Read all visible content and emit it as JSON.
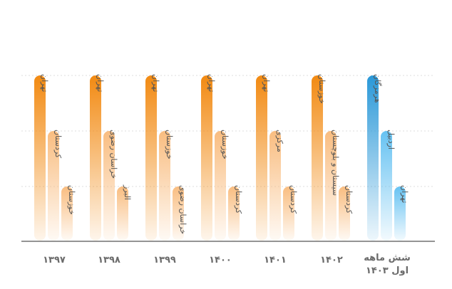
{
  "chart_data": {
    "type": "bar",
    "grid": true,
    "levels": [
      3,
      2,
      1
    ],
    "colors": {
      "orange": "#F28A12",
      "orange_light": "#F9BD80",
      "blue": "#2A98D8",
      "blue_light": "#66C2F2",
      "grid": "#dddddd",
      "axis": "#555555",
      "label": "#555555",
      "category": "#6b6b6b"
    },
    "groups": [
      {
        "category_lines": [
          "۱۳۹۷"
        ],
        "color": "orange",
        "bars": [
          {
            "label": "تهران",
            "rank": 1
          },
          {
            "label": "کردستان",
            "rank": 2
          },
          {
            "label": "خوزستان",
            "rank": 3
          }
        ]
      },
      {
        "category_lines": [
          "۱۳۹۸"
        ],
        "color": "orange",
        "bars": [
          {
            "label": "تهران",
            "rank": 1
          },
          {
            "label": "خراسان رضوی",
            "rank": 2
          },
          {
            "label": "البرز",
            "rank": 3
          }
        ]
      },
      {
        "category_lines": [
          "۱۳۹۹"
        ],
        "color": "orange",
        "bars": [
          {
            "label": "تهران",
            "rank": 1
          },
          {
            "label": "خوزستان",
            "rank": 2
          },
          {
            "label": "خراسان رضوی",
            "rank": 3
          }
        ]
      },
      {
        "category_lines": [
          "۱۴۰۰"
        ],
        "color": "orange",
        "bars": [
          {
            "label": "تهران",
            "rank": 1
          },
          {
            "label": "خوزستان",
            "rank": 2
          },
          {
            "label": "کردستان",
            "rank": 3
          }
        ]
      },
      {
        "category_lines": [
          "۱۴۰۱"
        ],
        "color": "orange",
        "bars": [
          {
            "label": "تهران",
            "rank": 1
          },
          {
            "label": "مرکزی",
            "rank": 2
          },
          {
            "label": "کردستان",
            "rank": 3
          }
        ]
      },
      {
        "category_lines": [
          "۱۴۰۲"
        ],
        "color": "orange",
        "bars": [
          {
            "label": "خوزستان",
            "rank": 1
          },
          {
            "label": "سیستان و بلوچستان",
            "rank": 2
          },
          {
            "label": "کردستان",
            "rank": 3
          }
        ]
      },
      {
        "category_lines": [
          "شش ماهه",
          "اول ۱۴۰۳"
        ],
        "color": "blue",
        "bars": [
          {
            "label": "هرمزگان",
            "rank": 1
          },
          {
            "label": "اردبیل",
            "rank": 2
          },
          {
            "label": "تهران",
            "rank": 3
          }
        ]
      }
    ]
  }
}
